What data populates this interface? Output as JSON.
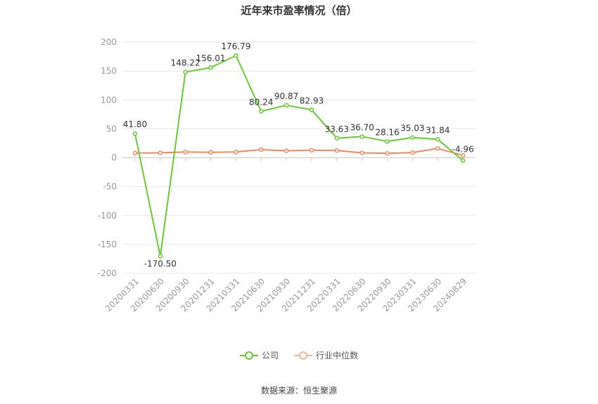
{
  "chart_data": {
    "type": "line",
    "title": "近年来市盈率情况（倍）",
    "categories": [
      "20200331",
      "20200630",
      "20200930",
      "20201231",
      "20210331",
      "20210630",
      "20210930",
      "20211231",
      "20220331",
      "20220630",
      "20220930",
      "20230331",
      "20230630",
      "20240829"
    ],
    "series": [
      {
        "name": "公司",
        "color": "#66cc33",
        "values": [
          41.8,
          -170.5,
          148.22,
          156.01,
          176.79,
          80.24,
          90.87,
          82.93,
          33.63,
          36.7,
          28.16,
          35.03,
          31.84,
          -4.96
        ],
        "labels": [
          "41.80",
          "-170.50",
          "148.22",
          "156.01",
          "176.79",
          "80.24",
          "90.87",
          "82.93",
          "33.63",
          "36.70",
          "28.16",
          "35.03",
          "31.84",
          "-4.96"
        ]
      },
      {
        "name": "行业中位数",
        "color": "#f08a5d",
        "values": [
          8,
          8.5,
          10,
          9.5,
          10,
          14,
          12,
          13,
          12.5,
          8.5,
          7.5,
          9,
          16,
          4
        ]
      }
    ],
    "ylim": [
      -200,
      200
    ],
    "yticks": [
      "200",
      "150",
      "100",
      "50",
      "0",
      "-50",
      "-100",
      "-150",
      "-200"
    ],
    "ytick_values": [
      200,
      150,
      100,
      50,
      0,
      -50,
      -100,
      -150,
      -200
    ],
    "grid": true,
    "legend": "bottom"
  },
  "source_note": "数据来源：恒生聚源"
}
